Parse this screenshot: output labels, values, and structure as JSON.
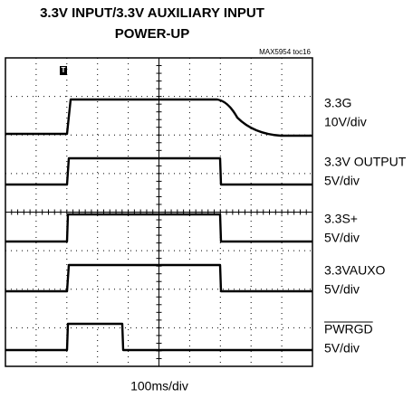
{
  "header": {
    "title_lines": [
      "3.3V INPUT/3.3V AUXILIARY INPUT",
      "POWER-UP"
    ],
    "ref": "MAX5954 toc16"
  },
  "channels": [
    {
      "name": "3.3G",
      "scale": "10V/div"
    },
    {
      "name": "3.3V OUTPUT",
      "scale": "5V/div"
    },
    {
      "name": "3.3S+",
      "scale": "5V/div"
    },
    {
      "name": "3.3VAUXO",
      "scale": "5V/div"
    },
    {
      "name": "PWRGD",
      "scale": "5V/div"
    }
  ],
  "time_scale": "100ms/div"
}
